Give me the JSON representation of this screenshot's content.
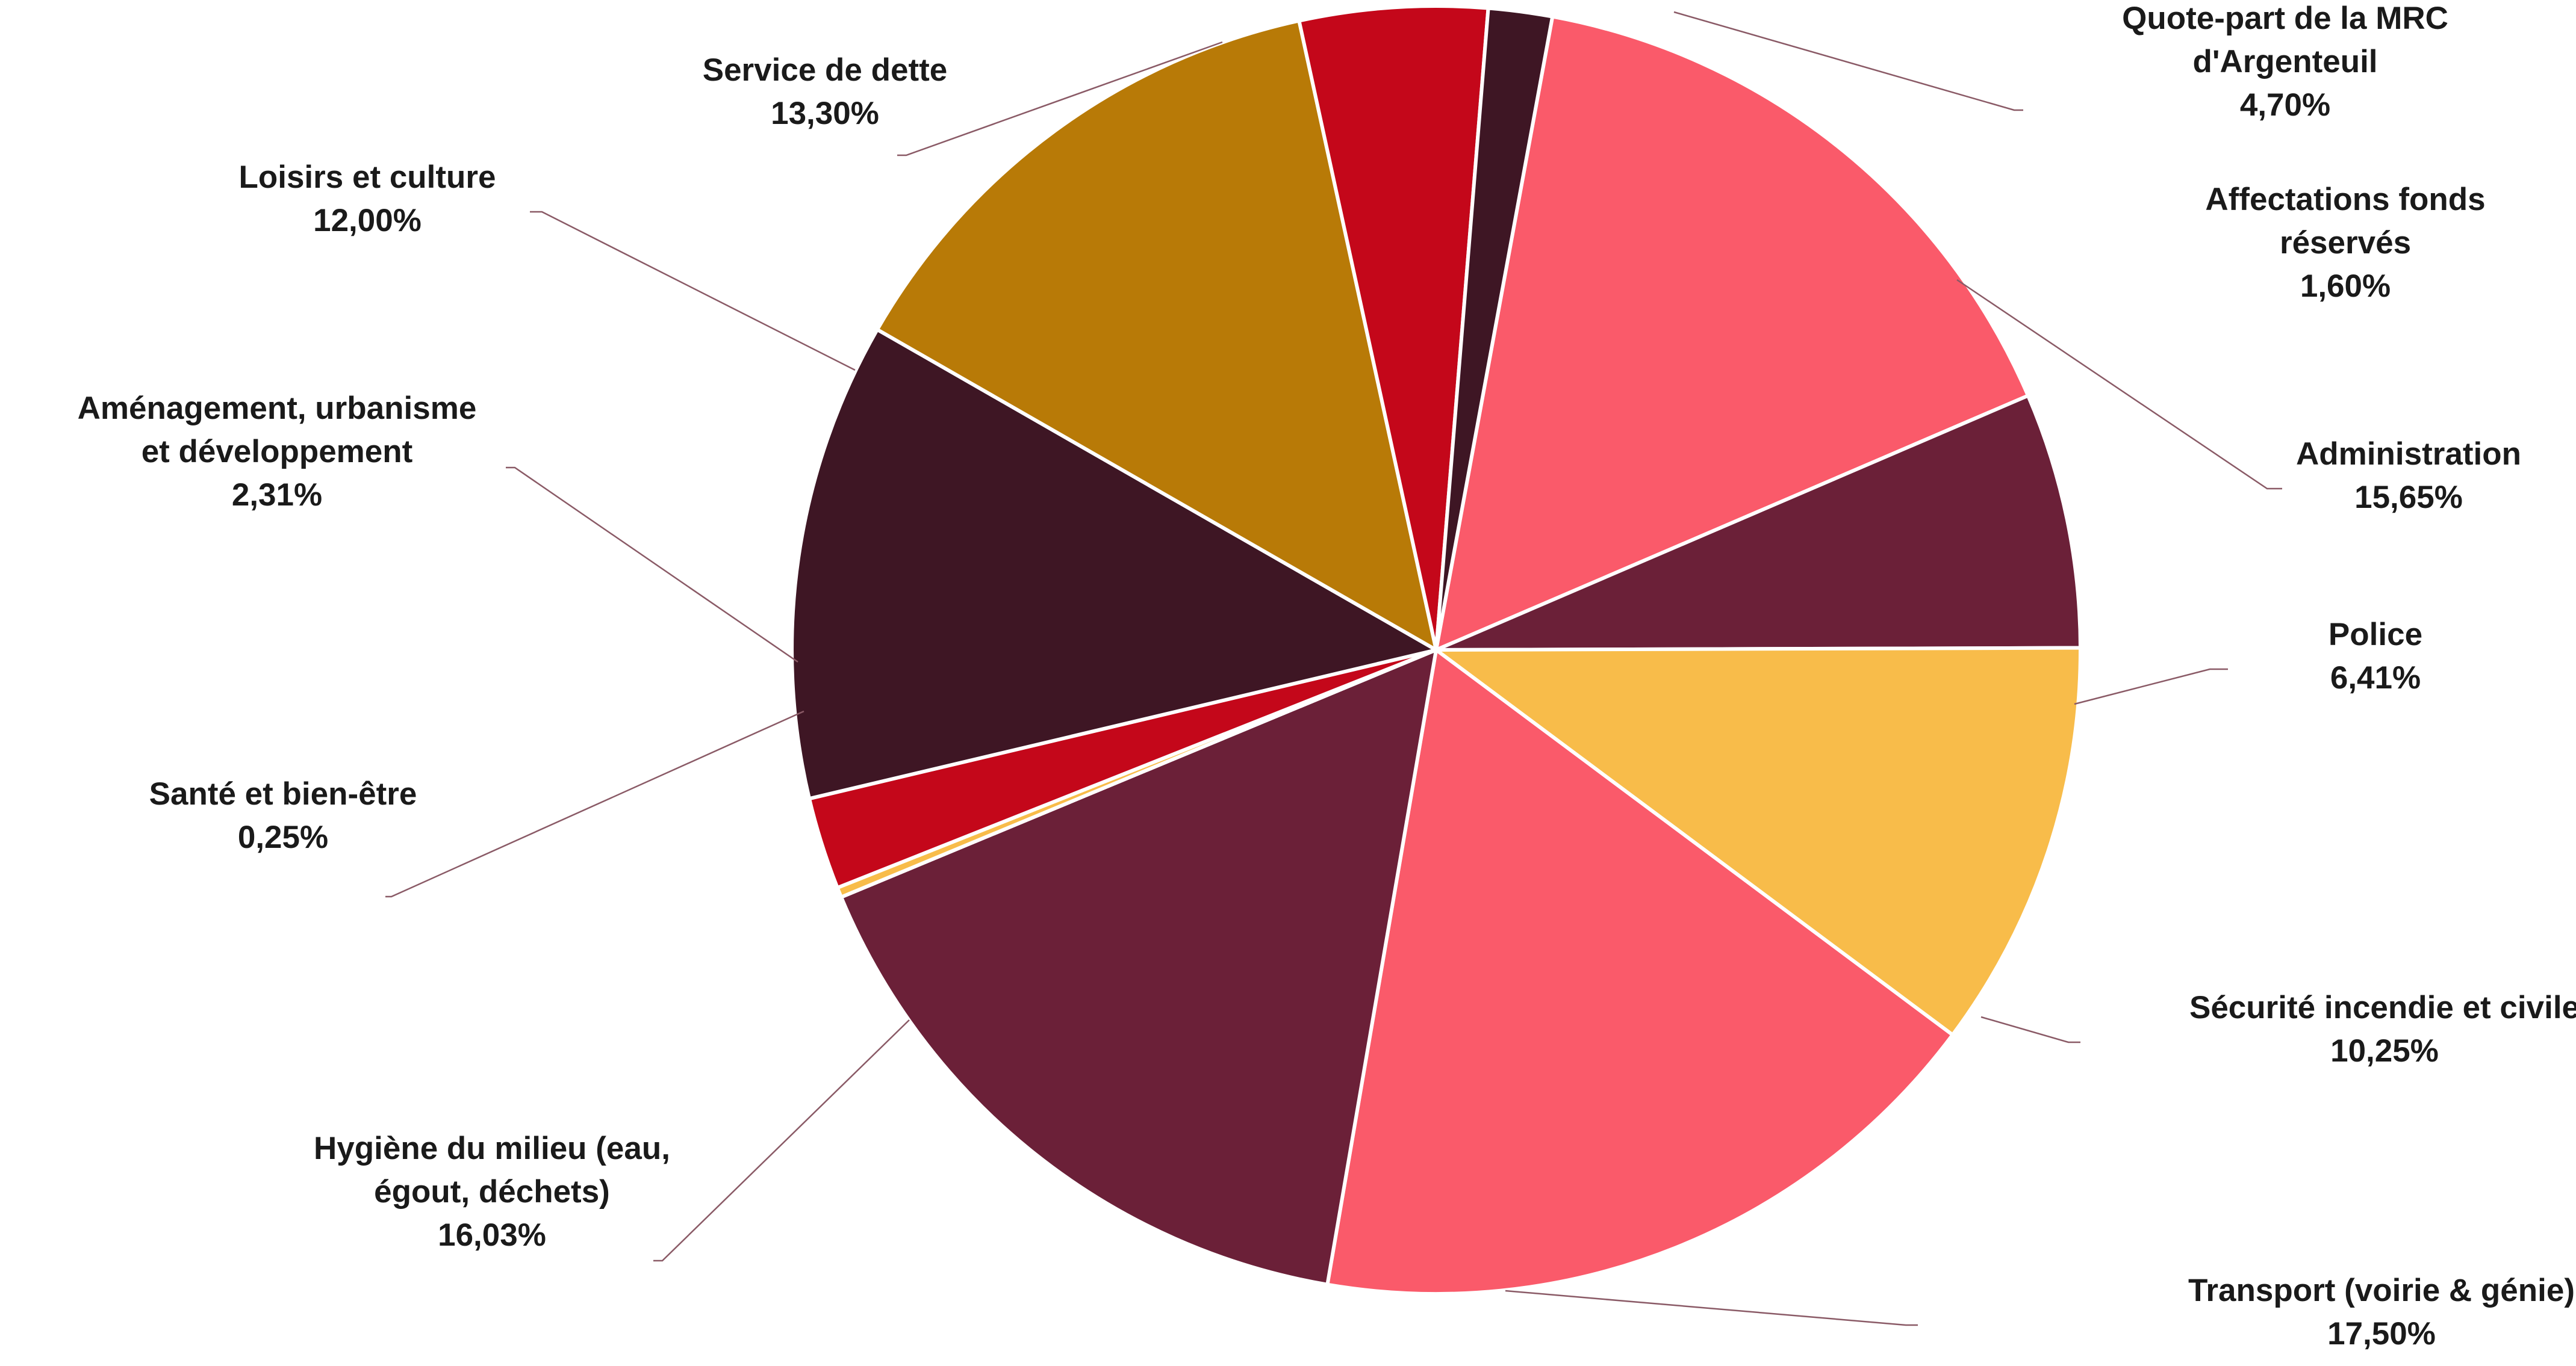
{
  "chart_data": {
    "type": "pie",
    "slices": [
      {
        "label": "Administration",
        "label_lines": [
          "Administration"
        ],
        "value_text": "15,65%",
        "value": 15.65,
        "color": "#FA5A6A"
      },
      {
        "label": "Police",
        "label_lines": [
          "Police"
        ],
        "value_text": "6,41%",
        "value": 6.41,
        "color": "#6B2038"
      },
      {
        "label": "Sécurité incendie et civile",
        "label_lines": [
          "Sécurité incendie et civile"
        ],
        "value_text": "10,25%",
        "value": 10.25,
        "color": "#F8BC4A"
      },
      {
        "label": "Transport (voirie & génie)",
        "label_lines": [
          "Transport (voirie & génie)"
        ],
        "value_text": "17,50%",
        "value": 17.5,
        "color": "#FA5A6A"
      },
      {
        "label": "Hygiène du milieu (eau, égout, déchets)",
        "label_lines": [
          "Hygiène du milieu (eau,",
          "égout, déchets)"
        ],
        "value_text": "16,03%",
        "value": 16.03,
        "color": "#6B2038"
      },
      {
        "label": "Santé et bien-être",
        "label_lines": [
          "Santé et bien-être"
        ],
        "value_text": "0,25%",
        "value": 0.25,
        "color": "#F8BC4A"
      },
      {
        "label": "Aménagement, urbanisme et développement",
        "label_lines": [
          "Aménagement, urbanisme",
          "et développement"
        ],
        "value_text": "2,31%",
        "value": 2.31,
        "color": "#C4071A"
      },
      {
        "label": "Loisirs et culture",
        "label_lines": [
          "Loisirs et culture"
        ],
        "value_text": "12,00%",
        "value": 12.0,
        "color": "#3E1624"
      },
      {
        "label": "Service de dette",
        "label_lines": [
          "Service de dette"
        ],
        "value_text": "13,30%",
        "value": 13.3,
        "color": "#B87A07"
      },
      {
        "label": "Quote-part de la MRC d'Argenteuil",
        "label_lines": [
          "Quote-part de la MRC",
          "d'Argenteuil"
        ],
        "value_text": "4,70%",
        "value": 4.7,
        "color": "#C4071A"
      },
      {
        "label": "Affectations fonds réservés",
        "label_lines": [
          "Affectations fonds",
          "réservés"
        ],
        "value_text": "1,60%",
        "value": 1.6,
        "color": "#3E1624"
      }
    ]
  }
}
